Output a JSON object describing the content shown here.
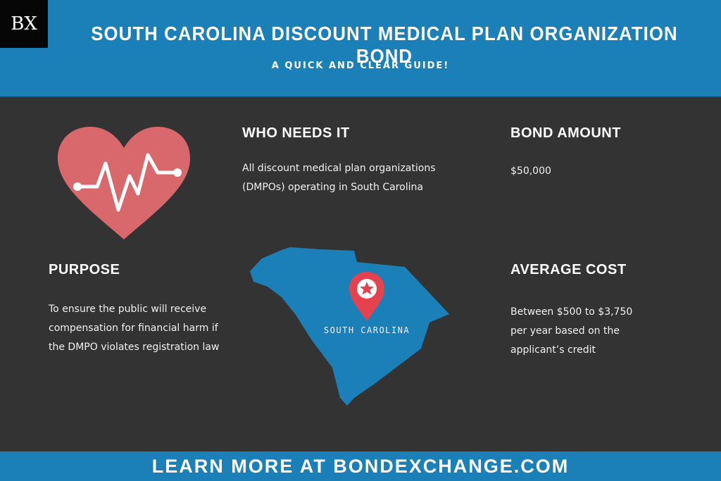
{
  "header": {
    "logo": "BX",
    "title": "SOUTH CAROLINA DISCOUNT MEDICAL PLAN ORGANIZATION BOND",
    "subtitle": "A QUICK AND CLEAR GUIDE!"
  },
  "sections": {
    "who": {
      "heading": "WHO NEEDS IT",
      "lines": [
        "All discount medical plan organizations",
        "(DMPOs) operating in South Carolina"
      ]
    },
    "amount": {
      "heading": "BOND AMOUNT",
      "lines": [
        "$50,000"
      ]
    },
    "purpose": {
      "heading": "PURPOSE",
      "lines": [
        "To ensure the public will receive",
        "compensation for financial harm if",
        "the DMPO violates registration law"
      ]
    },
    "cost": {
      "heading": "AVERAGE COST",
      "lines": [
        "Between $500 to $3,750",
        "per year based on the",
        "applicant’s credit"
      ]
    }
  },
  "map": {
    "label": "SOUTH CAROLINA",
    "state_color": "#1b80b8",
    "pin_color": "#e5424f"
  },
  "icons": {
    "heart": "heart-pulse-icon",
    "pin": "map-pin-star-icon"
  },
  "colors": {
    "header": "#1b80b8",
    "background": "#333333",
    "heart": "#d9686c"
  },
  "footer": {
    "text": "LEARN MORE AT BONDEXCHANGE.COM"
  }
}
